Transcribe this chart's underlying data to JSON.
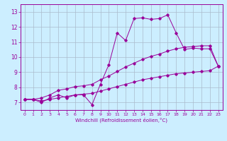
{
  "xlabel": "Windchill (Refroidissement éolien,°C)",
  "bg_color": "#cceeff",
  "line_color": "#990099",
  "grid_color": "#aabbcc",
  "xlim": [
    -0.5,
    23.5
  ],
  "ylim": [
    6.5,
    13.5
  ],
  "xticks": [
    0,
    1,
    2,
    3,
    4,
    5,
    6,
    7,
    8,
    9,
    10,
    11,
    12,
    13,
    14,
    15,
    16,
    17,
    18,
    19,
    20,
    21,
    22,
    23
  ],
  "yticks": [
    7,
    8,
    9,
    10,
    11,
    12,
    13
  ],
  "series1_x": [
    0,
    1,
    2,
    3,
    4,
    5,
    6,
    7,
    8,
    9,
    10,
    11,
    12,
    13,
    14,
    15,
    16,
    17,
    18,
    19,
    20,
    21,
    22,
    23
  ],
  "series1_y": [
    7.2,
    7.2,
    7.0,
    7.3,
    7.5,
    7.3,
    7.5,
    7.5,
    6.85,
    8.2,
    9.5,
    11.6,
    11.1,
    12.55,
    12.6,
    12.5,
    12.55,
    12.8,
    11.6,
    10.5,
    10.6,
    10.55,
    10.55,
    9.4
  ],
  "series2_x": [
    0,
    1,
    2,
    3,
    4,
    5,
    6,
    7,
    8,
    9,
    10,
    11,
    12,
    13,
    14,
    15,
    16,
    17,
    18,
    19,
    20,
    21,
    22,
    23
  ],
  "series2_y": [
    7.2,
    7.2,
    7.3,
    7.5,
    7.8,
    7.9,
    8.05,
    8.1,
    8.2,
    8.5,
    8.75,
    9.05,
    9.35,
    9.6,
    9.85,
    10.05,
    10.2,
    10.4,
    10.55,
    10.65,
    10.7,
    10.75,
    10.75,
    9.4
  ],
  "series3_x": [
    0,
    1,
    2,
    3,
    4,
    5,
    6,
    7,
    8,
    9,
    10,
    11,
    12,
    13,
    14,
    15,
    16,
    17,
    18,
    19,
    20,
    21,
    22,
    23
  ],
  "series3_y": [
    7.2,
    7.2,
    7.1,
    7.2,
    7.3,
    7.4,
    7.5,
    7.55,
    7.6,
    7.75,
    7.9,
    8.05,
    8.2,
    8.35,
    8.5,
    8.6,
    8.7,
    8.8,
    8.9,
    8.95,
    9.0,
    9.05,
    9.1,
    9.4
  ]
}
